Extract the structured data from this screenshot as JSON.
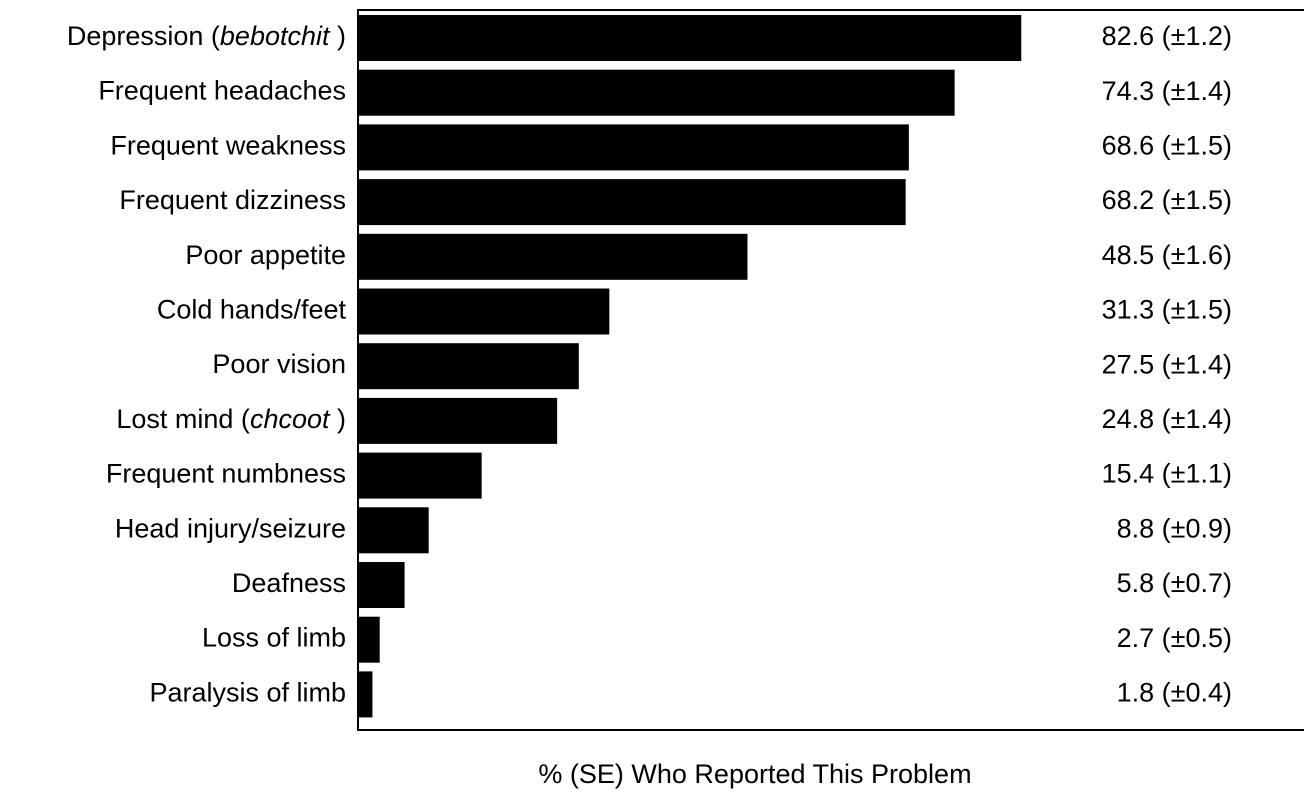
{
  "chart_data": {
    "type": "bar",
    "orientation": "horizontal",
    "categories": [
      {
        "text": "Depression (",
        "italic": "bebotchit",
        "suffix": " )"
      },
      {
        "text": "Frequent headaches"
      },
      {
        "text": "Frequent weakness"
      },
      {
        "text": "Frequent dizziness"
      },
      {
        "text": "Poor appetite"
      },
      {
        "text": "Cold hands/feet"
      },
      {
        "text": "Poor vision"
      },
      {
        "text": "Lost mind (",
        "italic": "chcoot",
        "suffix": " )"
      },
      {
        "text": "Frequent numbness"
      },
      {
        "text": "Head injury/seizure"
      },
      {
        "text": "Deafness"
      },
      {
        "text": "Loss of limb"
      },
      {
        "text": "Paralysis of limb"
      }
    ],
    "values": [
      82.6,
      74.3,
      68.6,
      68.2,
      48.5,
      31.3,
      27.5,
      24.8,
      15.4,
      8.8,
      5.8,
      2.7,
      1.8
    ],
    "value_labels": [
      "82.6 (±1.2)",
      "74.3 (±1.4)",
      "68.6 (±1.5)",
      "68.2 (±1.5)",
      "48.5 (±1.6)",
      "31.3 (±1.5)",
      "27.5 (±1.4)",
      "24.8 (±1.4)",
      "15.4 (±1.1)",
      "8.8 (±0.9)",
      "5.8 (±0.7)",
      "2.7 (±0.5)",
      "1.8 (±0.4)"
    ],
    "xlabel": "% (SE) Who Reported This Problem",
    "xlim": [
      0,
      100
    ],
    "bar_color": "#000000",
    "grid": false
  }
}
